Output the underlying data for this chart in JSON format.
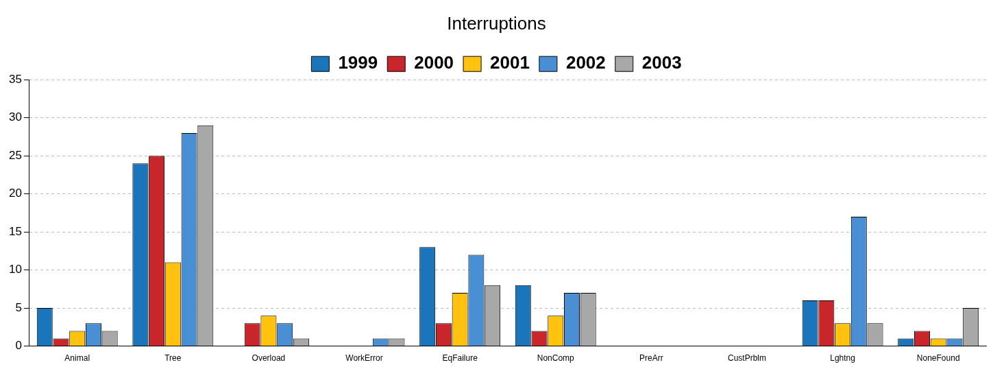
{
  "chart_data": {
    "type": "bar",
    "title": "Interruptions",
    "categories": [
      "Animal",
      "Tree",
      "Overload",
      "WorkError",
      "EqFailure",
      "NonComp",
      "PreArr",
      "CustPrblm",
      "Lghtng",
      "NoneFound"
    ],
    "series": [
      {
        "name": "1999",
        "color": "#1a75bb",
        "values": [
          5,
          24,
          0,
          0,
          13,
          8,
          0,
          0,
          6,
          1
        ]
      },
      {
        "name": "2000",
        "color": "#c8262a",
        "values": [
          1,
          25,
          3,
          0,
          3,
          2,
          0,
          0,
          6,
          2
        ]
      },
      {
        "name": "2001",
        "color": "#ffc20e",
        "values": [
          2,
          11,
          4,
          0,
          7,
          4,
          0,
          0,
          3,
          1
        ]
      },
      {
        "name": "2002",
        "color": "#4a8fd4",
        "values": [
          3,
          28,
          3,
          1,
          12,
          7,
          0,
          0,
          17,
          1
        ]
      },
      {
        "name": "2003",
        "color": "#a8a8a8",
        "values": [
          2,
          29,
          1,
          1,
          8,
          7,
          0,
          0,
          3,
          5
        ]
      }
    ],
    "ylim": [
      0,
      35
    ],
    "yticks": [
      0,
      5,
      10,
      15,
      20,
      25,
      30,
      35
    ],
    "grid": "y",
    "legend": "top"
  }
}
